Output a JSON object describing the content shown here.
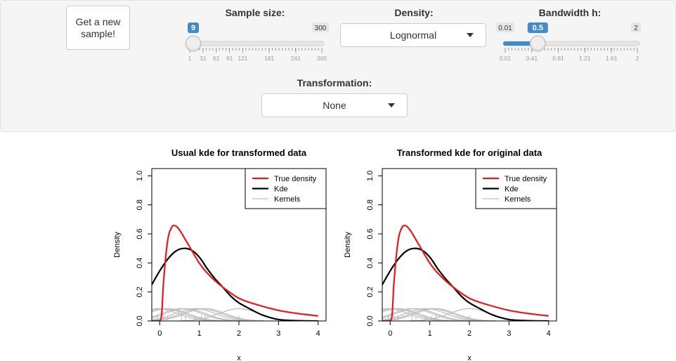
{
  "controls": {
    "new_sample_button": "Get a new sample!",
    "sample_size": {
      "label": "Sample size:",
      "min": 1,
      "max": 300,
      "value": 9,
      "min_label": "1",
      "max_label": "300",
      "value_label": "9",
      "ticks": [
        "1",
        "31",
        "61",
        "91",
        "121",
        "181",
        "241",
        "300"
      ]
    },
    "density": {
      "label": "Density:",
      "value": "Lognormal"
    },
    "bandwidth": {
      "label": "Bandwidth h:",
      "min": 0.01,
      "max": 2,
      "value": 0.5,
      "min_label": "0.01",
      "max_label": "2",
      "value_label": "0.5",
      "ticks": [
        "0.01",
        "0.41",
        "0.81",
        "1.21",
        "1.61",
        "2"
      ]
    },
    "transformation": {
      "label": "Transformation:",
      "value": "None"
    }
  },
  "colors": {
    "true_density": "#e41a1c",
    "kde": "#000000",
    "kernels": "#bebebe",
    "slider_accent": "#428bca"
  },
  "chart_data": [
    {
      "type": "line",
      "title": "Usual kde for transformed data",
      "xlabel": "x",
      "ylabel": "Density",
      "xlim": [
        -0.2,
        4.2
      ],
      "ylim": [
        0,
        1.05
      ],
      "xticks": [
        "0",
        "1",
        "2",
        "3",
        "4"
      ],
      "yticks": [
        "0.0",
        "0.2",
        "0.4",
        "0.6",
        "0.8",
        "1.0"
      ],
      "legend": {
        "position": "top-right",
        "entries": [
          "True density",
          "Kde",
          "Kernels"
        ]
      },
      "series": [
        {
          "name": "True density",
          "x": [
            0,
            0.05,
            0.1,
            0.2,
            0.3,
            0.4,
            0.5,
            0.6,
            0.8,
            1.0,
            1.2,
            1.5,
            2.0,
            2.5,
            3.0,
            3.5,
            4.0
          ],
          "y": [
            0.0,
            0.045,
            0.28,
            0.55,
            0.645,
            0.655,
            0.627,
            0.583,
            0.49,
            0.399,
            0.33,
            0.253,
            0.157,
            0.109,
            0.073,
            0.051,
            0.035
          ]
        },
        {
          "name": "Kde",
          "x": [
            -0.2,
            0,
            0.2,
            0.4,
            0.6,
            0.8,
            1.0,
            1.2,
            1.4,
            1.6,
            1.8,
            2.0,
            2.3,
            2.6,
            3.0,
            3.5,
            4.0
          ],
          "y": [
            0.25,
            0.345,
            0.425,
            0.48,
            0.5,
            0.488,
            0.44,
            0.36,
            0.29,
            0.23,
            0.17,
            0.125,
            0.08,
            0.04,
            0.01,
            0.002,
            0.0
          ]
        },
        {
          "name": "Kernels",
          "centers": [
            -0.05,
            0.1,
            0.2,
            0.55,
            0.65,
            0.9,
            1.05,
            1.15,
            2.0
          ],
          "peak": 0.085,
          "sd": 0.5
        }
      ],
      "rug": [
        -0.05,
        0.1,
        0.2,
        0.55,
        0.65,
        0.9,
        1.05,
        1.15,
        2.0
      ]
    },
    {
      "type": "line",
      "title": "Transformed kde for original data",
      "xlabel": "x",
      "ylabel": "Density",
      "xlim": [
        -0.2,
        4.2
      ],
      "ylim": [
        0,
        1.05
      ],
      "xticks": [
        "0",
        "1",
        "2",
        "3",
        "4"
      ],
      "yticks": [
        "0.0",
        "0.2",
        "0.4",
        "0.6",
        "0.8",
        "1.0"
      ],
      "legend": {
        "position": "top-right",
        "entries": [
          "True density",
          "Kde",
          "Kernels"
        ]
      },
      "series": [
        {
          "name": "True density",
          "x": [
            0,
            0.05,
            0.1,
            0.2,
            0.3,
            0.4,
            0.5,
            0.6,
            0.8,
            1.0,
            1.2,
            1.5,
            2.0,
            2.5,
            3.0,
            3.5,
            4.0
          ],
          "y": [
            0.0,
            0.045,
            0.28,
            0.55,
            0.645,
            0.655,
            0.627,
            0.583,
            0.49,
            0.399,
            0.33,
            0.253,
            0.157,
            0.109,
            0.073,
            0.051,
            0.035
          ]
        },
        {
          "name": "Kde",
          "x": [
            -0.2,
            0,
            0.2,
            0.4,
            0.6,
            0.8,
            1.0,
            1.2,
            1.4,
            1.6,
            1.8,
            2.0,
            2.3,
            2.6,
            3.0,
            3.5,
            4.0
          ],
          "y": [
            0.25,
            0.345,
            0.425,
            0.48,
            0.5,
            0.488,
            0.44,
            0.36,
            0.29,
            0.23,
            0.17,
            0.125,
            0.08,
            0.04,
            0.01,
            0.002,
            0.0
          ]
        },
        {
          "name": "Kernels",
          "centers": [
            -0.05,
            0.1,
            0.2,
            0.55,
            0.65,
            0.9,
            1.05,
            1.15,
            2.0
          ],
          "peak": 0.085,
          "sd": 0.5
        }
      ],
      "rug": [
        -0.05,
        0.1,
        0.2,
        0.55,
        0.65,
        0.9,
        1.05,
        1.15,
        2.0
      ]
    }
  ]
}
